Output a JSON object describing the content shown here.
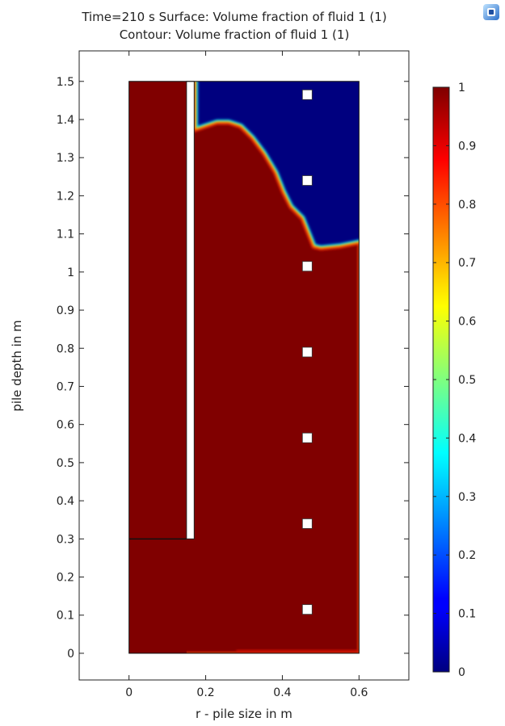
{
  "title": {
    "line1": "Time=210 s   Surface: Volume fraction of fluid 1 (1)",
    "line2": "Contour: Volume fraction of fluid 1 (1)"
  },
  "colors": {
    "fluid1": "#800000",
    "fluid2": "#00007f",
    "frame": "#222222",
    "colormap": "jet"
  },
  "logo_icon": "comsol-logo-icon",
  "chart_data": {
    "type": "heatmap",
    "xlabel": "r - pile size in m",
    "ylabel": "pile depth in m",
    "xlim": [
      -0.13,
      0.73
    ],
    "ylim": [
      -0.07,
      1.58
    ],
    "xticks": [
      0,
      0.2,
      0.4,
      0.6
    ],
    "xtick_labels": [
      "0",
      "0.2",
      "0.4",
      "0.6"
    ],
    "yticks": [
      0,
      0.1,
      0.2,
      0.3,
      0.4,
      0.5,
      0.6,
      0.7,
      0.8,
      0.9,
      1.0,
      1.1,
      1.2,
      1.3,
      1.4,
      1.5
    ],
    "ytick_labels": [
      "0",
      "0.1",
      "0.2",
      "0.3",
      "0.4",
      "0.5",
      "0.6",
      "0.7",
      "0.8",
      "0.9",
      "1",
      "1.1",
      "1.2",
      "1.3",
      "1.4",
      "1.5"
    ],
    "domain": {
      "r": [
        0,
        0.6
      ],
      "z": [
        0,
        1.5
      ]
    },
    "wall": {
      "r": [
        0.15,
        0.17
      ],
      "z": [
        0.3,
        1.5
      ]
    },
    "interface_line": {
      "r": [
        0,
        0.15
      ],
      "z": 0.3
    },
    "fluid1_region_boundary": [
      [
        0.17,
        1.37
      ],
      [
        0.2,
        1.38
      ],
      [
        0.23,
        1.39
      ],
      [
        0.26,
        1.39
      ],
      [
        0.29,
        1.38
      ],
      [
        0.32,
        1.35
      ],
      [
        0.35,
        1.31
      ],
      [
        0.38,
        1.26
      ],
      [
        0.4,
        1.21
      ],
      [
        0.42,
        1.17
      ],
      [
        0.45,
        1.14
      ],
      [
        0.47,
        1.09
      ],
      [
        0.48,
        1.065
      ],
      [
        0.5,
        1.06
      ],
      [
        0.55,
        1.065
      ],
      [
        0.6,
        1.075
      ]
    ],
    "probe_points": [
      [
        0.465,
        1.465
      ],
      [
        0.465,
        1.24
      ],
      [
        0.465,
        1.015
      ],
      [
        0.465,
        0.79
      ],
      [
        0.465,
        0.565
      ],
      [
        0.465,
        0.34
      ],
      [
        0.465,
        0.115
      ]
    ],
    "colorbar": {
      "min": 0,
      "max": 1,
      "ticks": [
        0,
        0.1,
        0.2,
        0.3,
        0.4,
        0.5,
        0.6,
        0.7,
        0.8,
        0.9,
        1
      ],
      "tick_labels": [
        "0",
        "0.1",
        "0.2",
        "0.3",
        "0.4",
        "0.5",
        "0.6",
        "0.7",
        "0.8",
        "0.9",
        "1"
      ]
    }
  }
}
